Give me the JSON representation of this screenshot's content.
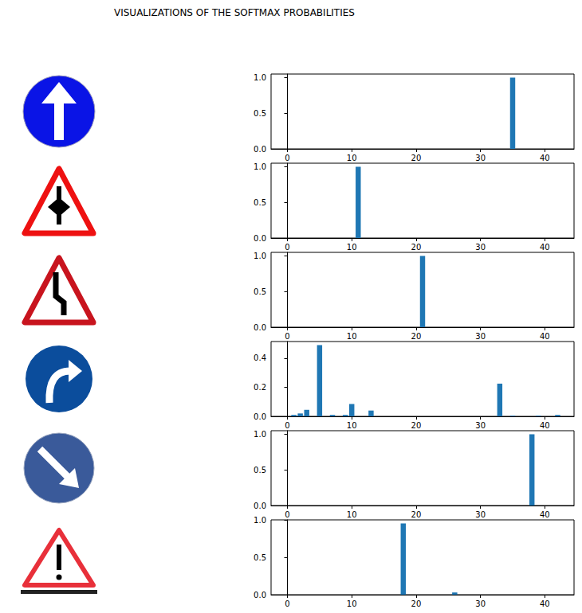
{
  "title": "VISUALIZATIONS OF THE SOFTMAX PROBABILITIES",
  "chart_data": [
    {
      "type": "bar",
      "color": "#1f77b4",
      "grid": false,
      "x": [
        0,
        1,
        2,
        3,
        4,
        5,
        6,
        7,
        8,
        9,
        10,
        11,
        12,
        13,
        14,
        15,
        16,
        17,
        18,
        19,
        20,
        21,
        22,
        23,
        24,
        25,
        26,
        27,
        28,
        29,
        30,
        31,
        32,
        33,
        34,
        35,
        36,
        37,
        38,
        39,
        40,
        41,
        42
      ],
      "values": [
        0,
        0,
        0,
        0,
        0,
        0,
        0,
        0,
        0,
        0,
        0,
        0,
        0,
        0,
        0,
        0,
        0,
        0,
        0,
        0,
        0,
        0,
        0,
        0,
        0,
        0,
        0,
        0,
        0,
        0,
        0,
        0,
        0,
        0,
        0,
        1.0,
        0,
        0,
        0,
        0,
        0,
        0,
        0
      ],
      "xlim": [
        -2.54,
        44.54
      ],
      "xticks": [
        0,
        10,
        20,
        30,
        40
      ],
      "ylim": [
        0,
        1.05
      ],
      "yticks": [
        {
          "value": 0,
          "label": "0.0"
        },
        {
          "value": 0.5,
          "label": "0.5"
        },
        {
          "value": 1.0,
          "label": "1.0"
        }
      ]
    },
    {
      "type": "bar",
      "color": "#1f77b4",
      "grid": false,
      "x": [
        0,
        1,
        2,
        3,
        4,
        5,
        6,
        7,
        8,
        9,
        10,
        11,
        12,
        13,
        14,
        15,
        16,
        17,
        18,
        19,
        20,
        21,
        22,
        23,
        24,
        25,
        26,
        27,
        28,
        29,
        30,
        31,
        32,
        33,
        34,
        35,
        36,
        37,
        38,
        39,
        40,
        41,
        42
      ],
      "values": [
        0,
        0,
        0,
        0,
        0,
        0,
        0,
        0,
        0,
        0,
        0,
        1.0,
        0,
        0,
        0,
        0,
        0,
        0,
        0,
        0,
        0,
        0,
        0,
        0,
        0,
        0,
        0,
        0,
        0,
        0,
        0,
        0,
        0,
        0,
        0,
        0,
        0,
        0,
        0,
        0,
        0,
        0,
        0
      ],
      "xlim": [
        -2.54,
        44.54
      ],
      "xticks": [
        0,
        10,
        20,
        30,
        40
      ],
      "ylim": [
        0,
        1.05
      ],
      "yticks": [
        {
          "value": 0,
          "label": "0.0"
        },
        {
          "value": 0.5,
          "label": "0.5"
        },
        {
          "value": 1.0,
          "label": "1.0"
        }
      ]
    },
    {
      "type": "bar",
      "color": "#1f77b4",
      "grid": false,
      "x": [
        0,
        1,
        2,
        3,
        4,
        5,
        6,
        7,
        8,
        9,
        10,
        11,
        12,
        13,
        14,
        15,
        16,
        17,
        18,
        19,
        20,
        21,
        22,
        23,
        24,
        25,
        26,
        27,
        28,
        29,
        30,
        31,
        32,
        33,
        34,
        35,
        36,
        37,
        38,
        39,
        40,
        41,
        42
      ],
      "values": [
        0,
        0,
        0,
        0,
        0,
        0,
        0,
        0,
        0,
        0,
        0,
        0,
        0,
        0,
        0,
        0,
        0,
        0,
        0,
        0,
        0,
        1.0,
        0,
        0,
        0,
        0,
        0,
        0,
        0,
        0,
        0,
        0,
        0,
        0,
        0,
        0,
        0,
        0,
        0,
        0,
        0,
        0,
        0
      ],
      "xlim": [
        -2.54,
        44.54
      ],
      "xticks": [
        0,
        10,
        20,
        30,
        40
      ],
      "ylim": [
        0,
        1.05
      ],
      "yticks": [
        {
          "value": 0,
          "label": "0.0"
        },
        {
          "value": 0.5,
          "label": "0.5"
        },
        {
          "value": 1.0,
          "label": "1.0"
        }
      ]
    },
    {
      "type": "bar",
      "color": "#1f77b4",
      "grid": false,
      "x": [
        0,
        1,
        2,
        3,
        4,
        5,
        6,
        7,
        8,
        9,
        10,
        11,
        12,
        13,
        14,
        15,
        16,
        17,
        18,
        19,
        20,
        21,
        22,
        23,
        24,
        25,
        26,
        27,
        28,
        29,
        30,
        31,
        32,
        33,
        34,
        35,
        36,
        37,
        38,
        39,
        40,
        41,
        42
      ],
      "values": [
        0,
        0.01,
        0.02,
        0.045,
        0,
        0.49,
        0,
        0.01,
        0,
        0.01,
        0.085,
        0,
        0,
        0.04,
        0,
        0,
        0,
        0,
        0,
        0,
        0,
        0,
        0,
        0,
        0,
        0,
        0,
        0,
        0,
        0,
        0,
        0,
        0,
        0.225,
        0,
        0.005,
        0,
        0,
        0,
        0.005,
        0,
        0,
        0.01
      ],
      "xlim": [
        -2.54,
        44.54
      ],
      "xticks": [
        0,
        10,
        20,
        30,
        40
      ],
      "ylim": [
        0,
        0.5145
      ],
      "yticks": [
        {
          "value": 0,
          "label": "0.0"
        },
        {
          "value": 0.2,
          "label": "0.2"
        },
        {
          "value": 0.4,
          "label": "0.4"
        }
      ]
    },
    {
      "type": "bar",
      "color": "#1f77b4",
      "grid": false,
      "x": [
        0,
        1,
        2,
        3,
        4,
        5,
        6,
        7,
        8,
        9,
        10,
        11,
        12,
        13,
        14,
        15,
        16,
        17,
        18,
        19,
        20,
        21,
        22,
        23,
        24,
        25,
        26,
        27,
        28,
        29,
        30,
        31,
        32,
        33,
        34,
        35,
        36,
        37,
        38,
        39,
        40,
        41,
        42
      ],
      "values": [
        0,
        0,
        0,
        0,
        0,
        0,
        0,
        0,
        0,
        0,
        0,
        0,
        0,
        0,
        0,
        0,
        0,
        0,
        0,
        0,
        0,
        0,
        0,
        0,
        0,
        0,
        0,
        0,
        0,
        0,
        0,
        0,
        0,
        0,
        0,
        0,
        0,
        0,
        1.0,
        0,
        0,
        0,
        0
      ],
      "xlim": [
        -2.54,
        44.54
      ],
      "xticks": [
        0,
        10,
        20,
        30,
        40
      ],
      "ylim": [
        0,
        1.05
      ],
      "yticks": [
        {
          "value": 0,
          "label": "0.0"
        },
        {
          "value": 0.5,
          "label": "0.5"
        },
        {
          "value": 1.0,
          "label": "1.0"
        }
      ]
    },
    {
      "type": "bar",
      "color": "#1f77b4",
      "grid": false,
      "x": [
        0,
        1,
        2,
        3,
        4,
        5,
        6,
        7,
        8,
        9,
        10,
        11,
        12,
        13,
        14,
        15,
        16,
        17,
        18,
        19,
        20,
        21,
        22,
        23,
        24,
        25,
        26,
        27,
        28,
        29,
        30,
        31,
        32,
        33,
        34,
        35,
        36,
        37,
        38,
        39,
        40,
        41,
        42
      ],
      "values": [
        0,
        0,
        0,
        0,
        0,
        0,
        0,
        0,
        0,
        0,
        0,
        0,
        0,
        0,
        0,
        0,
        0,
        0,
        0.96,
        0,
        0,
        0,
        0,
        0,
        0,
        0,
        0.03,
        0,
        0,
        0,
        0,
        0,
        0,
        0,
        0,
        0,
        0,
        0,
        0,
        0,
        0,
        0,
        0
      ],
      "xlim": [
        -2.54,
        44.54
      ],
      "xticks": [
        0,
        10,
        20,
        30,
        40
      ],
      "ylim": [
        0,
        1.008
      ],
      "yticks": [
        {
          "value": 0,
          "label": "0.0"
        },
        {
          "value": 0.5,
          "label": "0.5"
        },
        {
          "value": 1.0,
          "label": "1.0"
        }
      ]
    }
  ]
}
